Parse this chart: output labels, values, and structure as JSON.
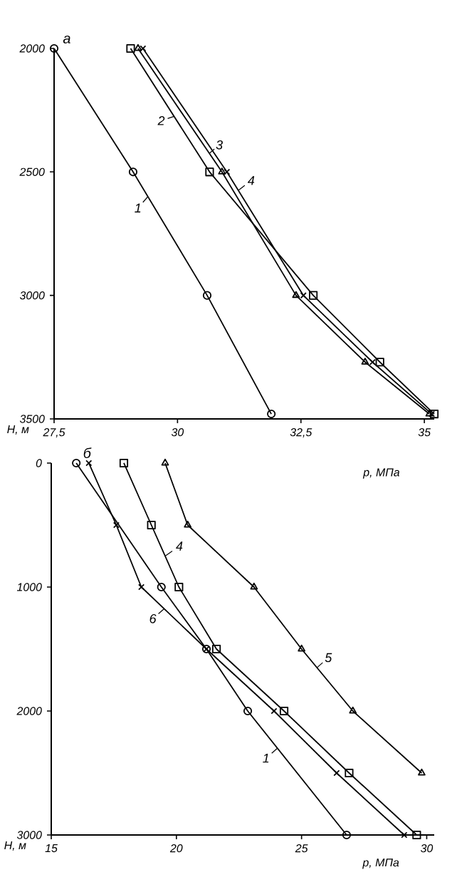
{
  "chart_data": [
    {
      "type": "line",
      "title": "а",
      "xlabel": "p, МПа",
      "ylabel": "H, м",
      "xlim": [
        27.5,
        35.2
      ],
      "ylim": [
        3500,
        2000
      ],
      "xticks": [
        {
          "value": 27.5,
          "label": "27,5"
        },
        30,
        {
          "value": 32.5,
          "label": "32,5"
        },
        35
      ],
      "yticks": [
        2000,
        2500,
        3000,
        3500
      ],
      "grid": false,
      "legend": "top",
      "series": [
        {
          "name": "1",
          "color": "#000000",
          "marker": "circle",
          "x": [
            27.5,
            29.1,
            30.6,
            31.9
          ],
          "values": [
            2000,
            2500,
            3000,
            3480
          ]
        },
        {
          "name": "2",
          "color": "#000000",
          "marker": "square",
          "x": [
            29.05,
            30.65,
            32.75,
            34.1,
            35.2
          ],
          "values": [
            2000,
            2500,
            3000,
            3270,
            3480
          ]
        },
        {
          "name": "3",
          "color": "#000000",
          "marker": "triangle",
          "x": [
            29.2,
            30.9,
            32.4,
            33.8,
            35.1
          ],
          "values": [
            2000,
            2500,
            3000,
            3270,
            3480
          ]
        },
        {
          "name": "4",
          "color": "#000000",
          "marker": "cross",
          "x": [
            29.3,
            31.0,
            32.55,
            33.95,
            35.15
          ],
          "values": [
            2000,
            2500,
            3000,
            3270,
            3480
          ]
        }
      ]
    },
    {
      "type": "line",
      "title": "б",
      "xlabel": "p, МПа",
      "ylabel": "H, м",
      "xlim": [
        15,
        30.3
      ],
      "ylim": [
        3000,
        0
      ],
      "xticks": [
        15,
        20,
        25,
        30
      ],
      "yticks": [
        0,
        1000,
        2000,
        3000
      ],
      "grid": false,
      "legend": "center",
      "series": [
        {
          "name": "1",
          "color": "#000000",
          "marker": "circle",
          "x": [
            16.0,
            19.4,
            21.2,
            22.85,
            26.8
          ],
          "values": [
            0,
            1000,
            1500,
            2000,
            3000
          ]
        },
        {
          "name": "4",
          "color": "#000000",
          "marker": "square",
          "x": [
            17.9,
            19.0,
            20.1,
            21.6,
            24.3,
            26.9,
            29.6
          ],
          "values": [
            0,
            500,
            1000,
            1500,
            2000,
            2500,
            3000
          ]
        },
        {
          "name": "5",
          "color": "#000000",
          "marker": "triangle",
          "x": [
            19.55,
            20.45,
            23.1,
            25.0,
            27.05,
            29.8
          ],
          "values": [
            0,
            500,
            1000,
            1500,
            2000,
            2500
          ]
        },
        {
          "name": "6",
          "color": "#000000",
          "marker": "cross",
          "x": [
            16.5,
            17.6,
            18.6,
            21.2,
            23.9,
            26.4,
            29.1
          ],
          "values": [
            0,
            500,
            1000,
            1500,
            2000,
            2500,
            3000
          ]
        }
      ]
    }
  ]
}
